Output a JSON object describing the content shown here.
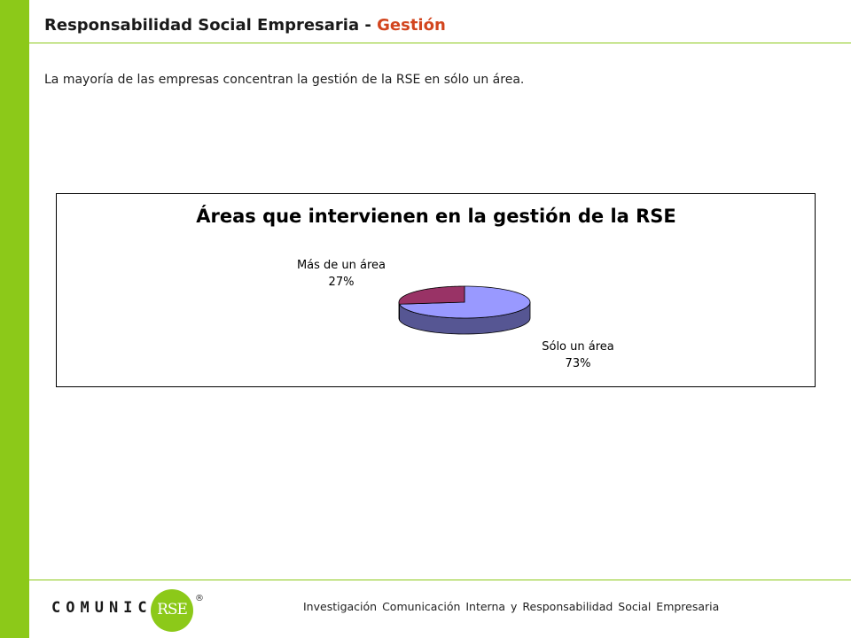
{
  "header": {
    "title_main": "Responsabilidad Social Empresaria - ",
    "title_accent": "Gestión"
  },
  "intro_text": "La mayoría de las empresas concentran la gestión de la RSE en sólo un área.",
  "chart_data": {
    "type": "pie",
    "title": "Áreas que intervienen en la gestión de la RSE",
    "three_d": true,
    "labels": [
      "Sólo un área",
      "Más de un área"
    ],
    "values": [
      73,
      27
    ],
    "value_labels": [
      "73%",
      "27%"
    ],
    "colors": [
      "#9999ff",
      "#993366"
    ],
    "side_colors": [
      "#565693",
      "#5a1e3c"
    ]
  },
  "footer": {
    "text": "Investigación Comunicación Interna y Responsabilidad Social Empresaria",
    "logo_word": "COMUNICA",
    "logo_badge": "RSE",
    "logo_mark": "®"
  }
}
